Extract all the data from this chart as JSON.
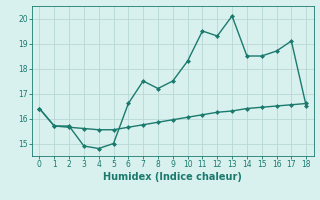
{
  "title": "",
  "xlabel": "Humidex (Indice chaleur)",
  "ylabel": "",
  "x": [
    0,
    1,
    2,
    3,
    4,
    5,
    6,
    7,
    8,
    9,
    10,
    11,
    12,
    13,
    14,
    15,
    16,
    17,
    18
  ],
  "line1_y": [
    16.4,
    15.7,
    15.7,
    14.9,
    14.8,
    15.0,
    16.6,
    17.5,
    17.2,
    17.5,
    18.3,
    19.5,
    19.3,
    20.1,
    18.5,
    18.5,
    18.7,
    19.1,
    16.5
  ],
  "line2_y": [
    16.4,
    15.7,
    15.65,
    15.6,
    15.55,
    15.55,
    15.65,
    15.75,
    15.85,
    15.95,
    16.05,
    16.15,
    16.25,
    16.3,
    16.4,
    16.45,
    16.5,
    16.55,
    16.6
  ],
  "line_color": "#1a7a6e",
  "bg_color": "#d8f0ee",
  "grid_color": "#b8d8d4",
  "ylim": [
    14.5,
    20.5
  ],
  "xlim": [
    -0.5,
    18.5
  ],
  "yticks": [
    15,
    16,
    17,
    18,
    19,
    20
  ],
  "xticks": [
    0,
    1,
    2,
    3,
    4,
    5,
    6,
    7,
    8,
    9,
    10,
    11,
    12,
    13,
    14,
    15,
    16,
    17,
    18
  ],
  "tick_fontsize": 5.5,
  "xlabel_fontsize": 7,
  "marker": "D",
  "marker_size": 2.0,
  "linewidth": 1.0
}
